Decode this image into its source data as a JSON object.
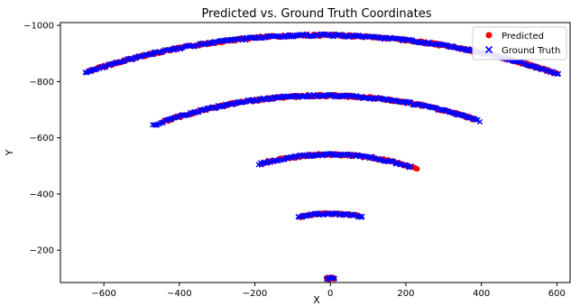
{
  "chart_data": {
    "type": "scatter",
    "title": "Predicted vs. Ground Truth Coordinates",
    "xlabel": "X",
    "ylabel": "Y",
    "xlim": [
      -715,
      635
    ],
    "ylim": [
      -85,
      -1010
    ],
    "y_inverted": true,
    "x_ticks": [
      -600,
      -400,
      -200,
      0,
      200,
      400,
      600
    ],
    "x_tick_labels": [
      "−600",
      "−400",
      "−200",
      "0",
      "200",
      "400",
      "600"
    ],
    "y_ticks": [
      -1000,
      -800,
      -600,
      -400,
      -200
    ],
    "y_tick_labels": [
      "−1000",
      "−800",
      "−600",
      "−400",
      "−200"
    ],
    "grid": false,
    "legend_position": "top-right",
    "series": [
      {
        "name": "Predicted",
        "marker": "circle",
        "color": "#ff0000",
        "arcs": [
          {
            "cx": -30,
            "cy": 550,
            "r": 1515,
            "x_from": -640,
            "x_to": 600
          },
          {
            "cx": -20,
            "cy": 250,
            "r": 1000,
            "x_from": -440,
            "x_to": 380
          },
          {
            "cx": 0,
            "cy": 0,
            "r": 540,
            "x_from": -180,
            "x_to": 230
          },
          {
            "cx": 0,
            "cy": 0,
            "r": 330,
            "x_from": -80,
            "x_to": 75
          },
          {
            "cx": 0,
            "cy": 0,
            "r": 100,
            "x_from": -10,
            "x_to": 10
          }
        ]
      },
      {
        "name": "Ground Truth",
        "marker": "x",
        "color": "#0000ff",
        "arcs": [
          {
            "cx": -30,
            "cy": 550,
            "r": 1515,
            "x_from": -650,
            "x_to": 605
          },
          {
            "cx": -20,
            "cy": 250,
            "r": 1000,
            "x_from": -470,
            "x_to": 395
          },
          {
            "cx": 0,
            "cy": 0,
            "r": 540,
            "x_from": -190,
            "x_to": 215
          },
          {
            "cx": 0,
            "cy": 0,
            "r": 330,
            "x_from": -85,
            "x_to": 85
          },
          {
            "cx": 0,
            "cy": 0,
            "r": 100,
            "x_from": -10,
            "x_to": 10
          }
        ]
      }
    ]
  }
}
